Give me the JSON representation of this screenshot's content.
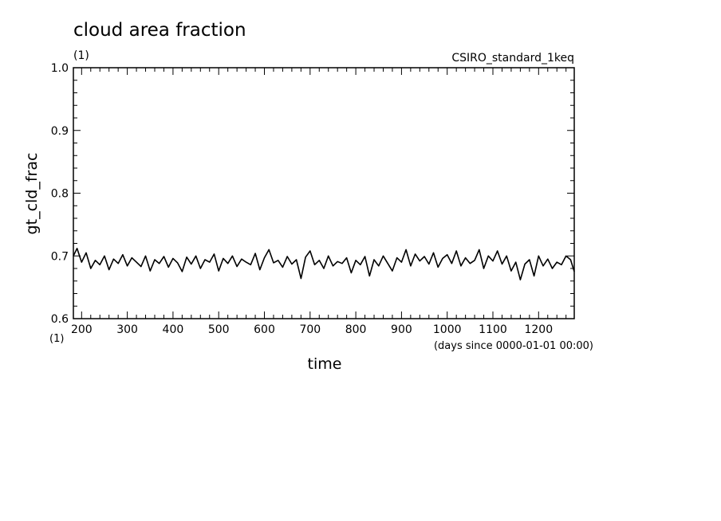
{
  "chart_data": {
    "type": "line",
    "title": "cloud area fraction",
    "title_units": "(1)",
    "dataset_label": "CSIRO_standard_1keq",
    "xlabel": "time",
    "x_units_left": "(1)",
    "x_units": "(days since 0000-01-01 00:00)",
    "ylabel": "gt_cld_frac",
    "xlim": [
      182,
      1278
    ],
    "ylim": [
      0.6,
      1.0
    ],
    "x_ticks": [
      200,
      300,
      400,
      500,
      600,
      700,
      800,
      900,
      1000,
      1100,
      1200
    ],
    "x_tick_labels": [
      "200",
      "300",
      "400",
      "500",
      "600",
      "700",
      "800",
      "900",
      "1000",
      "1100",
      "1200"
    ],
    "y_ticks": [
      0.6,
      0.7,
      0.8,
      0.9,
      1.0
    ],
    "y_tick_labels": [
      "0.6",
      "0.7",
      "0.8",
      "0.9",
      "1.0"
    ],
    "series": [
      {
        "x": [
          182,
          190,
          200,
          210,
          220,
          230,
          240,
          250,
          260,
          270,
          280,
          290,
          300,
          310,
          320,
          330,
          340,
          350,
          360,
          370,
          380,
          390,
          400,
          410,
          420,
          430,
          440,
          450,
          460,
          470,
          480,
          490,
          500,
          510,
          520,
          530,
          540,
          550,
          560,
          570,
          580,
          590,
          600,
          610,
          620,
          630,
          640,
          650,
          660,
          670,
          680,
          690,
          700,
          710,
          720,
          730,
          740,
          750,
          760,
          770,
          780,
          790,
          800,
          810,
          820,
          830,
          840,
          850,
          860,
          870,
          880,
          890,
          900,
          910,
          920,
          930,
          940,
          950,
          960,
          970,
          980,
          990,
          1000,
          1010,
          1020,
          1030,
          1040,
          1050,
          1060,
          1070,
          1080,
          1090,
          1100,
          1110,
          1120,
          1130,
          1140,
          1150,
          1160,
          1170,
          1180,
          1190,
          1200,
          1210,
          1220,
          1230,
          1240,
          1250,
          1260,
          1270,
          1278
        ],
        "y": [
          0.7,
          0.712,
          0.69,
          0.705,
          0.68,
          0.693,
          0.686,
          0.7,
          0.678,
          0.695,
          0.688,
          0.702,
          0.684,
          0.697,
          0.69,
          0.683,
          0.7,
          0.676,
          0.694,
          0.688,
          0.699,
          0.682,
          0.696,
          0.689,
          0.675,
          0.698,
          0.687,
          0.7,
          0.68,
          0.694,
          0.69,
          0.703,
          0.676,
          0.696,
          0.688,
          0.7,
          0.683,
          0.695,
          0.69,
          0.686,
          0.704,
          0.678,
          0.697,
          0.71,
          0.689,
          0.693,
          0.682,
          0.699,
          0.687,
          0.694,
          0.664,
          0.698,
          0.708,
          0.686,
          0.693,
          0.68,
          0.7,
          0.684,
          0.691,
          0.688,
          0.697,
          0.673,
          0.693,
          0.686,
          0.699,
          0.668,
          0.694,
          0.684,
          0.7,
          0.688,
          0.676,
          0.697,
          0.69,
          0.71,
          0.684,
          0.703,
          0.692,
          0.699,
          0.687,
          0.705,
          0.682,
          0.696,
          0.702,
          0.688,
          0.708,
          0.684,
          0.697,
          0.688,
          0.693,
          0.71,
          0.68,
          0.7,
          0.692,
          0.708,
          0.687,
          0.7,
          0.676,
          0.69,
          0.662,
          0.687,
          0.694,
          0.668,
          0.7,
          0.684,
          0.695,
          0.68,
          0.69,
          0.686,
          0.7,
          0.694,
          0.675
        ]
      }
    ]
  }
}
